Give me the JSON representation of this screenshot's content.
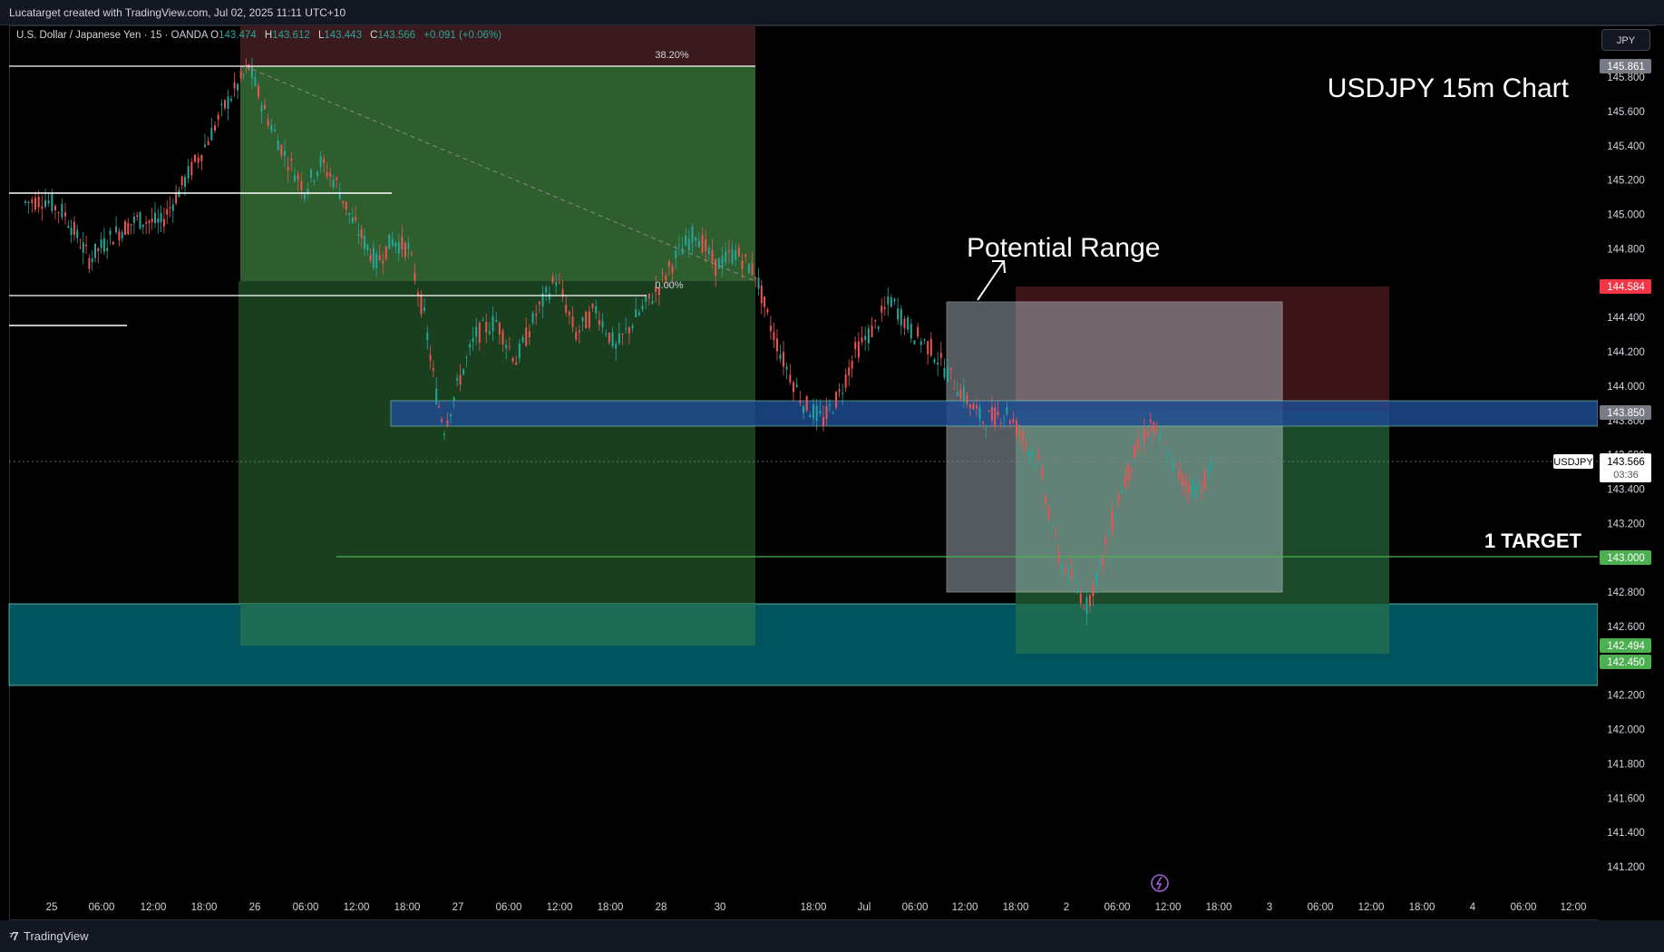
{
  "header": {
    "created_text": "Lucatarget created with TradingView.com, Jul 02, 2025 11:11 UTC+10"
  },
  "legend": {
    "symbol_text": "U.S. Dollar / Japanese Yen · 15 · OANDA",
    "o_label": "O",
    "o_value": "143.474",
    "h_label": "H",
    "h_value": "143.612",
    "l_label": "L",
    "l_value": "143.443",
    "c_label": "C",
    "c_value": "143.566",
    "change": "+0.091 (+0.06%)"
  },
  "currency_button": "JPY",
  "footer": {
    "brand": "TradingView"
  },
  "colors": {
    "background": "#000000",
    "up": "#26a69a",
    "down": "#ef5350",
    "target_line": "#4caf50",
    "price_blue_zone": "#1e4b8f",
    "teal_zone": "#00545e"
  },
  "chart_data": {
    "type": "candlestick",
    "symbol": "USDJPY",
    "interval": "15",
    "title_annotation": "USDJPY 15m Chart",
    "price_axis": {
      "min": 141.2,
      "max": 145.8,
      "ticks": [
        "145.800",
        "145.600",
        "145.400",
        "145.200",
        "145.000",
        "144.800",
        "144.400",
        "144.200",
        "144.000",
        "143.800",
        "143.600",
        "143.400",
        "143.200",
        "142.800",
        "142.600",
        "142.200",
        "142.000",
        "141.800",
        "141.600",
        "141.400",
        "141.200"
      ]
    },
    "time_axis": {
      "ticks": [
        "25",
        "06:00",
        "12:00",
        "18:00",
        "26",
        "06:00",
        "12:00",
        "18:00",
        "27",
        "06:00",
        "12:00",
        "18:00",
        "28",
        "30",
        "18:00",
        "Jul",
        "06:00",
        "12:00",
        "18:00",
        "2",
        "06:00",
        "12:00",
        "18:00",
        "3",
        "06:00",
        "12:00",
        "18:00",
        "4",
        "06:00",
        "12:00"
      ]
    },
    "price_labels": [
      {
        "value": 145.861,
        "text": "145.861",
        "color": "#787b86"
      },
      {
        "value": 144.584,
        "text": "144.584",
        "color": "#f23645"
      },
      {
        "value": 143.85,
        "text": "143.850",
        "color": "#787b86"
      },
      {
        "value": 143.0,
        "text": "143.000",
        "color": "#4caf50"
      },
      {
        "value": 142.494,
        "text": "142.494",
        "color": "#4caf50"
      },
      {
        "value": 142.45,
        "text": "142.450",
        "color": "#4caf50"
      }
    ],
    "last_price": {
      "symbol": "USDJPY",
      "value": 143.566,
      "text": "143.566",
      "countdown": "03:36"
    },
    "annotations": {
      "potential_range": "Potential Range",
      "target": "1 TARGET",
      "fib_382": "38.20%",
      "fib_000": "0.00%"
    },
    "series_points": [
      [
        0,
        145.07
      ],
      [
        0.5,
        145.09
      ],
      [
        1,
        145.0
      ],
      [
        1.6,
        144.74
      ],
      [
        2.2,
        144.88
      ],
      [
        2.8,
        144.97
      ],
      [
        3.4,
        144.95
      ],
      [
        4,
        145.2
      ],
      [
        4.5,
        145.4
      ],
      [
        5,
        145.63
      ],
      [
        5.4,
        145.78
      ],
      [
        5.6,
        145.86
      ],
      [
        6,
        145.6
      ],
      [
        6.5,
        145.35
      ],
      [
        7,
        145.15
      ],
      [
        7.4,
        145.3
      ],
      [
        7.8,
        145.18
      ],
      [
        8.2,
        144.96
      ],
      [
        8.8,
        144.72
      ],
      [
        9.2,
        144.85
      ],
      [
        9.6,
        144.8
      ],
      [
        10,
        144.4
      ],
      [
        10.3,
        143.95
      ],
      [
        10.5,
        143.76
      ],
      [
        10.9,
        144.05
      ],
      [
        11.3,
        144.3
      ],
      [
        11.8,
        144.38
      ],
      [
        12.3,
        144.15
      ],
      [
        12.8,
        144.42
      ],
      [
        13.3,
        144.63
      ],
      [
        13.8,
        144.3
      ],
      [
        14.3,
        144.45
      ],
      [
        14.8,
        144.22
      ],
      [
        15.3,
        144.4
      ],
      [
        15.8,
        144.55
      ],
      [
        16.3,
        144.75
      ],
      [
        16.8,
        144.9
      ],
      [
        17.3,
        144.7
      ],
      [
        17.8,
        144.78
      ],
      [
        18.3,
        144.66
      ],
      [
        18.6,
        144.4
      ],
      [
        19,
        144.15
      ],
      [
        19.5,
        143.9
      ],
      [
        20,
        143.8
      ],
      [
        20.4,
        143.95
      ],
      [
        20.8,
        144.2
      ],
      [
        21.3,
        144.35
      ],
      [
        21.7,
        144.5
      ],
      [
        22.2,
        144.32
      ],
      [
        22.7,
        144.22
      ],
      [
        23.2,
        144.05
      ],
      [
        23.6,
        143.92
      ],
      [
        24,
        143.8
      ],
      [
        24.6,
        143.85
      ],
      [
        25,
        143.7
      ],
      [
        25.4,
        143.55
      ],
      [
        25.9,
        143.0
      ],
      [
        26.3,
        142.85
      ],
      [
        26.6,
        142.72
      ],
      [
        27,
        143.0
      ],
      [
        27.4,
        143.35
      ],
      [
        27.8,
        143.6
      ],
      [
        28.2,
        143.78
      ],
      [
        28.6,
        143.6
      ],
      [
        29,
        143.45
      ],
      [
        29.4,
        143.4
      ],
      [
        29.8,
        143.56
      ]
    ]
  }
}
